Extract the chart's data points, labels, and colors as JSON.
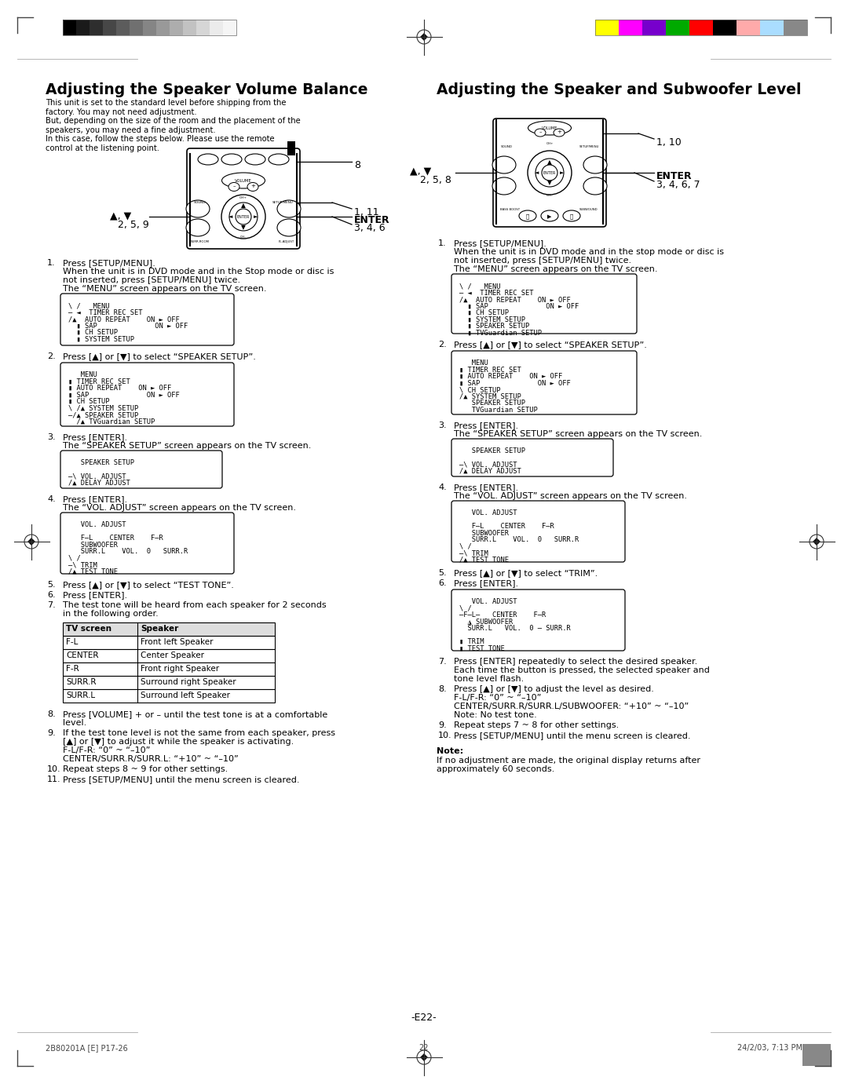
{
  "title_left": "Adjusting the Speaker Volume Balance",
  "title_right": "Adjusting the Speaker and Subwoofer Level",
  "page_number": "-E22-",
  "footer_left": "2B80201A [E] P17-26",
  "footer_center": "22",
  "footer_right": "24/2/03, 7:13 PM",
  "bg_color": "#ffffff",
  "grayscale_colors": [
    "#000000",
    "#1a1a1a",
    "#2e2e2e",
    "#474747",
    "#5c5c5c",
    "#707070",
    "#858585",
    "#999999",
    "#adadad",
    "#c2c2c2",
    "#d6d6d6",
    "#ebebeb",
    "#f5f5f5"
  ],
  "color_bars": [
    "#ffff00",
    "#ff00ff",
    "#7700cc",
    "#00aa00",
    "#ff0000",
    "#000000",
    "#ffaaaa",
    "#aaddff",
    "#888888"
  ],
  "table_headers": [
    "TV screen",
    "Speaker"
  ],
  "table_rows": [
    [
      "F-L",
      "Front left Speaker"
    ],
    [
      "CENTER",
      "Center Speaker"
    ],
    [
      "F-R",
      "Front right Speaker"
    ],
    [
      "SURR.R",
      "Surround right Speaker"
    ],
    [
      "SURR.L",
      "Surround left Speaker"
    ]
  ]
}
